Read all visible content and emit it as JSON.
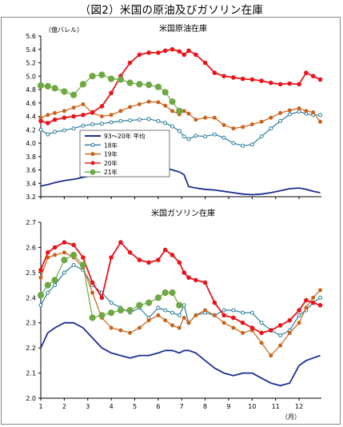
{
  "figure_title": "（図2）米国の原油及びガソリン在庫",
  "chart_data": [
    {
      "type": "line",
      "title": "米国原油在庫",
      "ylabel": "（億バレル）",
      "ylim": [
        3.2,
        5.6
      ],
      "yticks": [
        "3.2",
        "3.4",
        "3.6",
        "3.8",
        "4.0",
        "4.2",
        "4.4",
        "4.6",
        "4.8",
        "5.0",
        "5.2",
        "5.4",
        "5.6"
      ],
      "xlim": [
        1,
        12.95
      ],
      "grid": false,
      "legend_position": "middle-left",
      "series": [
        {
          "name": "93～20年 平均",
          "color": "#1f2f8f",
          "marker": "none",
          "x": [
            1,
            1.3,
            1.6,
            2,
            2.4,
            2.8,
            3.2,
            3.6,
            4,
            4.4,
            4.8,
            5.2,
            5.6,
            6,
            6.3,
            6.6,
            6.9,
            7.1,
            7.3,
            7.6,
            8,
            8.4,
            8.8,
            9.2,
            9.6,
            10,
            10.4,
            10.8,
            11.2,
            11.6,
            12,
            12.3,
            12.6,
            12.9
          ],
          "y": [
            3.36,
            3.38,
            3.41,
            3.44,
            3.46,
            3.49,
            3.52,
            3.56,
            3.6,
            3.62,
            3.63,
            3.64,
            3.66,
            3.65,
            3.63,
            3.6,
            3.57,
            3.53,
            3.35,
            3.33,
            3.31,
            3.3,
            3.28,
            3.26,
            3.24,
            3.23,
            3.24,
            3.26,
            3.29,
            3.32,
            3.33,
            3.31,
            3.28,
            3.26
          ]
        },
        {
          "name": "18年",
          "color": "#2e7d9a",
          "marker": "circle",
          "x": [
            1,
            1.3,
            1.6,
            2,
            2.4,
            2.8,
            3.2,
            3.6,
            4,
            4.4,
            4.8,
            5.2,
            5.6,
            6,
            6.3,
            6.6,
            6.9,
            7.1,
            7.3,
            7.6,
            8,
            8.4,
            8.8,
            9.2,
            9.6,
            10,
            10.4,
            10.8,
            11.2,
            11.6,
            12,
            12.3,
            12.6,
            12.9
          ],
          "y": [
            4.2,
            4.13,
            4.17,
            4.19,
            4.22,
            4.26,
            4.28,
            4.29,
            4.31,
            4.33,
            4.34,
            4.35,
            4.36,
            4.33,
            4.3,
            4.25,
            4.18,
            4.1,
            4.06,
            4.11,
            4.1,
            4.13,
            4.08,
            4.0,
            3.96,
            3.98,
            4.1,
            4.22,
            4.33,
            4.43,
            4.47,
            4.44,
            4.42,
            4.42
          ]
        },
        {
          "name": "19年",
          "color": "#c9631a",
          "marker": "circle",
          "x": [
            1,
            1.3,
            1.6,
            2,
            2.4,
            2.8,
            3.2,
            3.6,
            4,
            4.4,
            4.8,
            5.2,
            5.6,
            6,
            6.3,
            6.6,
            6.9,
            7.1,
            7.3,
            7.6,
            8,
            8.4,
            8.8,
            9.2,
            9.6,
            10,
            10.4,
            10.8,
            11.2,
            11.6,
            12,
            12.3,
            12.6,
            12.9
          ],
          "y": [
            4.38,
            4.42,
            4.45,
            4.48,
            4.53,
            4.58,
            4.45,
            4.4,
            4.42,
            4.48,
            4.54,
            4.58,
            4.62,
            4.61,
            4.56,
            4.48,
            4.43,
            4.48,
            4.44,
            4.35,
            4.38,
            4.38,
            4.27,
            4.22,
            4.24,
            4.28,
            4.32,
            4.38,
            4.45,
            4.49,
            4.52,
            4.48,
            4.46,
            4.32
          ]
        },
        {
          "name": "20年",
          "color": "#e8141c",
          "marker": "circle",
          "x": [
            1,
            1.3,
            1.6,
            2,
            2.4,
            2.8,
            3.2,
            3.6,
            4,
            4.4,
            4.8,
            5.2,
            5.6,
            6,
            6.3,
            6.6,
            6.9,
            7.1,
            7.3,
            7.6,
            8,
            8.4,
            8.8,
            9.2,
            9.6,
            10,
            10.4,
            10.8,
            11.2,
            11.6,
            12,
            12.3,
            12.6,
            12.9
          ],
          "y": [
            4.33,
            4.3,
            4.35,
            4.38,
            4.4,
            4.42,
            4.46,
            4.55,
            4.75,
            5.0,
            5.2,
            5.32,
            5.35,
            5.35,
            5.38,
            5.4,
            5.37,
            5.32,
            5.38,
            5.32,
            5.2,
            5.05,
            5.0,
            4.98,
            4.96,
            4.95,
            4.93,
            4.9,
            4.88,
            4.89,
            4.88,
            5.05,
            5.0,
            4.95
          ]
        },
        {
          "name": "21年",
          "color": "#6fa842",
          "marker": "circle",
          "x": [
            1,
            1.3,
            1.6,
            2,
            2.4,
            2.8,
            3.2,
            3.6,
            4,
            4.4,
            4.8,
            5.2,
            5.6,
            6,
            6.3,
            6.6,
            6.9
          ],
          "y": [
            4.86,
            4.85,
            4.82,
            4.77,
            4.72,
            4.88,
            5.0,
            5.02,
            4.96,
            4.95,
            4.9,
            4.88,
            4.87,
            4.84,
            4.76,
            4.62,
            4.48
          ]
        }
      ]
    },
    {
      "type": "line",
      "title": "米国ガソリン在庫",
      "ylim": [
        2.0,
        2.7
      ],
      "yticks": [
        "2.0",
        "2.1",
        "2.2",
        "2.3",
        "2.4",
        "2.5",
        "2.6",
        "2.7"
      ],
      "xlim": [
        1,
        12.95
      ],
      "xticks": [
        "1",
        "2",
        "3",
        "4",
        "5",
        "6",
        "7",
        "8",
        "9",
        "10",
        "11",
        "12"
      ],
      "xunit": "（月）",
      "grid": false,
      "series": [
        {
          "name": "93～20年 平均",
          "color": "#1f2f8f",
          "marker": "none",
          "x": [
            1,
            1.3,
            1.6,
            2,
            2.4,
            2.8,
            3.2,
            3.6,
            4,
            4.4,
            4.8,
            5.2,
            5.6,
            6,
            6.3,
            6.6,
            6.9,
            7.1,
            7.3,
            7.6,
            8,
            8.4,
            8.8,
            9.2,
            9.6,
            10,
            10.4,
            10.8,
            11.2,
            11.6,
            12,
            12.3,
            12.6,
            12.9
          ],
          "y": [
            2.2,
            2.26,
            2.28,
            2.3,
            2.3,
            2.28,
            2.24,
            2.2,
            2.18,
            2.17,
            2.16,
            2.17,
            2.17,
            2.18,
            2.19,
            2.19,
            2.18,
            2.19,
            2.19,
            2.18,
            2.15,
            2.12,
            2.1,
            2.09,
            2.1,
            2.1,
            2.08,
            2.06,
            2.05,
            2.06,
            2.13,
            2.15,
            2.16,
            2.17
          ]
        },
        {
          "name": "18年",
          "color": "#2e7d9a",
          "marker": "circle",
          "x": [
            1,
            1.3,
            1.6,
            2,
            2.4,
            2.8,
            3.2,
            3.6,
            4,
            4.4,
            4.8,
            5.2,
            5.6,
            6,
            6.3,
            6.6,
            6.9,
            7.1,
            7.3,
            7.6,
            8,
            8.4,
            8.8,
            9.2,
            9.6,
            10,
            10.4,
            10.8,
            11.2,
            11.6,
            12,
            12.3,
            12.6,
            12.9
          ],
          "y": [
            2.37,
            2.42,
            2.45,
            2.5,
            2.53,
            2.51,
            2.45,
            2.42,
            2.38,
            2.36,
            2.34,
            2.36,
            2.32,
            2.36,
            2.35,
            2.34,
            2.33,
            2.37,
            2.3,
            2.33,
            2.34,
            2.33,
            2.35,
            2.35,
            2.34,
            2.34,
            2.3,
            2.27,
            2.25,
            2.27,
            2.33,
            2.35,
            2.38,
            2.4
          ]
        },
        {
          "name": "19年",
          "color": "#c9631a",
          "marker": "circle",
          "x": [
            1,
            1.3,
            1.6,
            2,
            2.4,
            2.8,
            3.2,
            3.6,
            4,
            4.4,
            4.8,
            5.2,
            5.6,
            6,
            6.3,
            6.6,
            6.9,
            7.1,
            7.3,
            7.6,
            8,
            8.4,
            8.8,
            9.2,
            9.6,
            10,
            10.4,
            10.8,
            11.2,
            11.6,
            12,
            12.3,
            12.6,
            12.9
          ],
          "y": [
            2.48,
            2.56,
            2.57,
            2.58,
            2.56,
            2.52,
            2.42,
            2.32,
            2.28,
            2.27,
            2.26,
            2.28,
            2.31,
            2.33,
            2.31,
            2.29,
            2.28,
            2.32,
            2.3,
            2.33,
            2.35,
            2.33,
            2.3,
            2.28,
            2.26,
            2.27,
            2.22,
            2.17,
            2.21,
            2.26,
            2.3,
            2.36,
            2.4,
            2.43
          ]
        },
        {
          "name": "20年",
          "color": "#e8141c",
          "marker": "circle",
          "x": [
            1,
            1.3,
            1.6,
            2,
            2.4,
            2.8,
            3.2,
            3.6,
            4,
            4.4,
            4.8,
            5.2,
            5.6,
            6,
            6.3,
            6.6,
            6.9,
            7.1,
            7.3,
            7.6,
            8,
            8.4,
            8.8,
            9.2,
            9.6,
            10,
            10.4,
            10.8,
            11.2,
            11.6,
            12,
            12.3,
            12.6,
            12.9
          ],
          "y": [
            2.51,
            2.58,
            2.6,
            2.62,
            2.61,
            2.56,
            2.46,
            2.4,
            2.56,
            2.62,
            2.58,
            2.55,
            2.54,
            2.55,
            2.59,
            2.57,
            2.54,
            2.5,
            2.48,
            2.47,
            2.46,
            2.38,
            2.33,
            2.32,
            2.3,
            2.28,
            2.26,
            2.27,
            2.29,
            2.31,
            2.35,
            2.39,
            2.38,
            2.37
          ]
        },
        {
          "name": "21年",
          "color": "#6fa842",
          "marker": "circle",
          "x": [
            1,
            1.3,
            1.6,
            2,
            2.4,
            2.8,
            3.2,
            3.6,
            4,
            4.4,
            4.8,
            5.2,
            5.6,
            6,
            6.3,
            6.6,
            6.9
          ],
          "y": [
            2.41,
            2.45,
            2.47,
            2.55,
            2.57,
            2.53,
            2.32,
            2.33,
            2.34,
            2.35,
            2.35,
            2.37,
            2.38,
            2.4,
            2.42,
            2.42,
            2.37
          ]
        }
      ]
    }
  ]
}
